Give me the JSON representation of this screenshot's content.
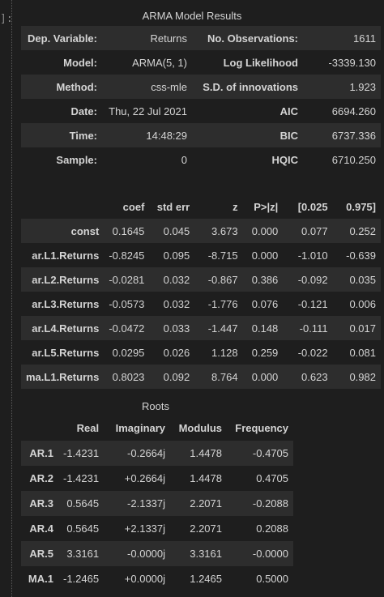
{
  "gutter": {
    "prompt": "]:"
  },
  "summary": {
    "caption": "ARMA Model Results",
    "rows": [
      {
        "label_left": "Dep. Variable:",
        "value_left": "Returns",
        "label_right": "No. Observations:",
        "value_right": "1611"
      },
      {
        "label_left": "Model:",
        "value_left": "ARMA(5, 1)",
        "label_right": "Log Likelihood",
        "value_right": "-3339.130"
      },
      {
        "label_left": "Method:",
        "value_left": "css-mle",
        "label_right": "S.D. of innovations",
        "value_right": "1.923"
      },
      {
        "label_left": "Date:",
        "value_left": "Thu, 22 Jul 2021",
        "label_right": "AIC",
        "value_right": "6694.260"
      },
      {
        "label_left": "Time:",
        "value_left": "14:48:29",
        "label_right": "BIC",
        "value_right": "6737.336"
      },
      {
        "label_left": "Sample:",
        "value_left": "0",
        "label_right": "HQIC",
        "value_right": "6710.250"
      }
    ]
  },
  "coefficients": {
    "headers": [
      "",
      "coef",
      "std err",
      "z",
      "P>|z|",
      "[0.025",
      "0.975]"
    ],
    "rows": [
      {
        "name": "const",
        "values": [
          "0.1645",
          "0.045",
          "3.673",
          "0.000",
          "0.077",
          "0.252"
        ]
      },
      {
        "name": "ar.L1.Returns",
        "values": [
          "-0.8245",
          "0.095",
          "-8.715",
          "0.000",
          "-1.010",
          "-0.639"
        ]
      },
      {
        "name": "ar.L2.Returns",
        "values": [
          "-0.0281",
          "0.032",
          "-0.867",
          "0.386",
          "-0.092",
          "0.035"
        ]
      },
      {
        "name": "ar.L3.Returns",
        "values": [
          "-0.0573",
          "0.032",
          "-1.776",
          "0.076",
          "-0.121",
          "0.006"
        ]
      },
      {
        "name": "ar.L4.Returns",
        "values": [
          "-0.0472",
          "0.033",
          "-1.447",
          "0.148",
          "-0.111",
          "0.017"
        ]
      },
      {
        "name": "ar.L5.Returns",
        "values": [
          "0.0295",
          "0.026",
          "1.128",
          "0.259",
          "-0.022",
          "0.081"
        ]
      },
      {
        "name": "ma.L1.Returns",
        "values": [
          "0.8023",
          "0.092",
          "8.764",
          "0.000",
          "0.623",
          "0.982"
        ]
      }
    ]
  },
  "roots": {
    "caption": "Roots",
    "headers": [
      "",
      "Real",
      "Imaginary",
      "Modulus",
      "Frequency"
    ],
    "rows": [
      {
        "name": "AR.1",
        "values": [
          "-1.4231",
          "-0.2664j",
          "1.4478",
          "-0.4705"
        ]
      },
      {
        "name": "AR.2",
        "values": [
          "-1.4231",
          "+0.2664j",
          "1.4478",
          "0.4705"
        ]
      },
      {
        "name": "AR.3",
        "values": [
          "0.5645",
          "-2.1337j",
          "2.2071",
          "-0.2088"
        ]
      },
      {
        "name": "AR.4",
        "values": [
          "0.5645",
          "+2.1337j",
          "2.2071",
          "0.2088"
        ]
      },
      {
        "name": "AR.5",
        "values": [
          "3.3161",
          "-0.0000j",
          "3.3161",
          "-0.0000"
        ]
      },
      {
        "name": "MA.1",
        "values": [
          "-1.2465",
          "+0.0000j",
          "1.2465",
          "0.5000"
        ]
      }
    ]
  }
}
